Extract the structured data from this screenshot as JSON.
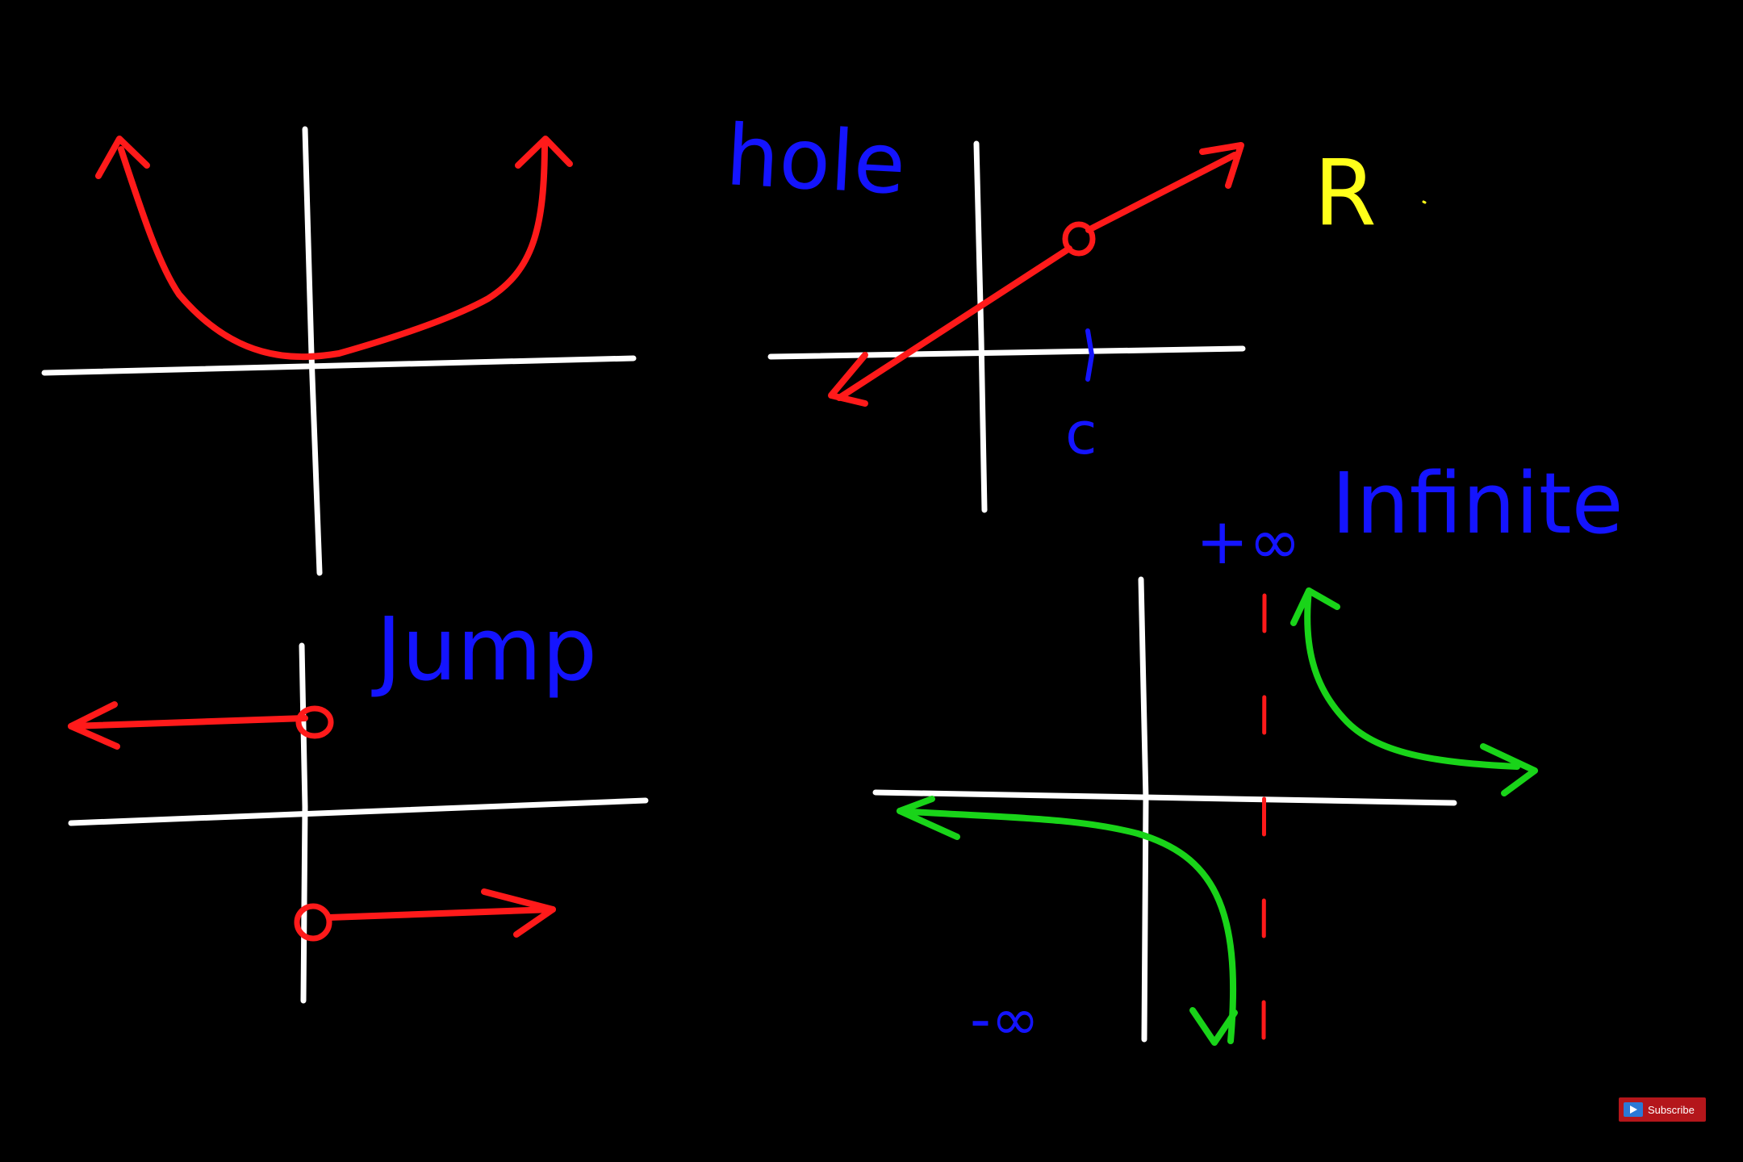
{
  "colors": {
    "background": "#000000",
    "axes": "#ffffff",
    "curve": "#ff1a1a",
    "label": "#1414ff",
    "r_label": "#ffff1a",
    "asymptote_curve": "#19d419",
    "asymptote_line": "#ff1a1a",
    "subscribe_bg": "#b4161b",
    "subscribe_icon": "#2a79d6"
  },
  "labels": {
    "hole": "hole",
    "c_mark": "c",
    "r_mark": "R",
    "jump": "Jump",
    "infinite": "Infinite",
    "plus_infinity": "+∞",
    "minus_infinity": "-∞"
  },
  "subscribe": {
    "label": "Subscribe",
    "icon": "play-icon"
  }
}
